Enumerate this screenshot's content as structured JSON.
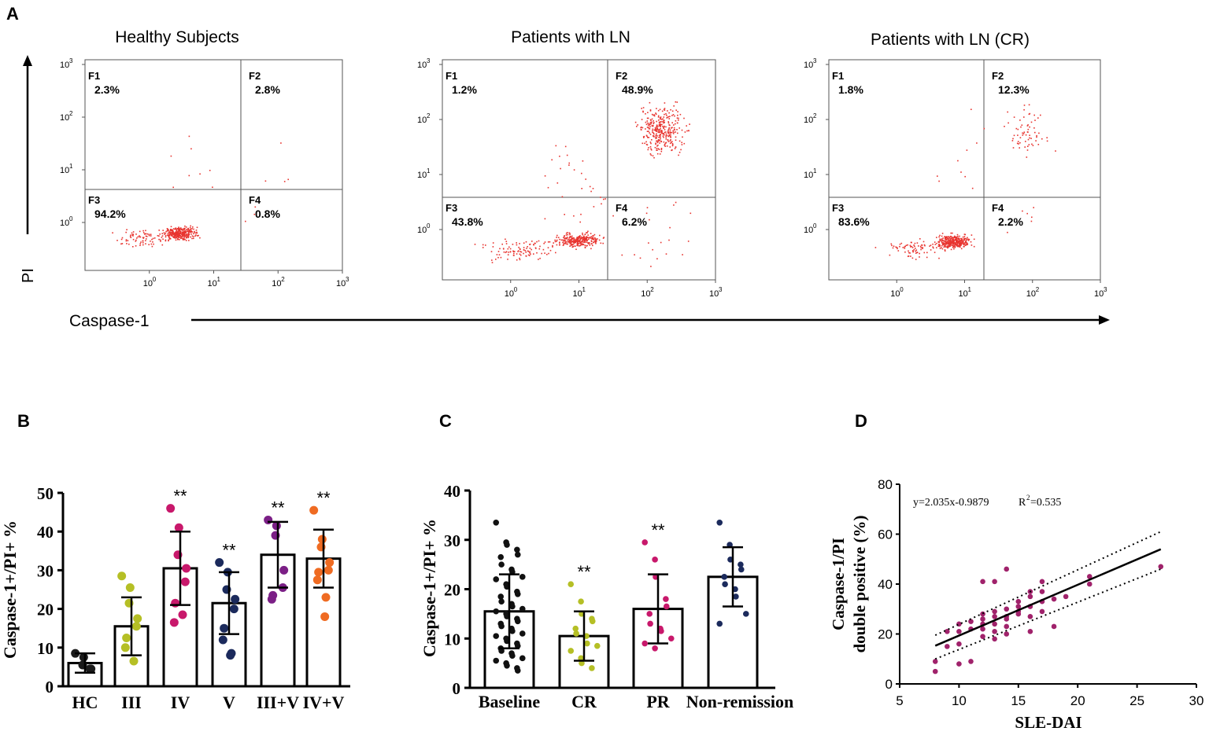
{
  "panel_labels": {
    "a": "A",
    "b": "B",
    "c": "C",
    "d": "D"
  },
  "panel_a": {
    "y_axis_label": "PI",
    "x_axis_label": "Caspase-1",
    "tick_labels": [
      "10",
      "0",
      "1",
      "2",
      "3"
    ],
    "plots": [
      {
        "title": "Healthy Subjects",
        "quadrants": [
          {
            "name": "F1",
            "value": "2.3%"
          },
          {
            "name": "F2",
            "value": "2.8%"
          },
          {
            "name": "F3",
            "value": "94.2%"
          },
          {
            "name": "F4",
            "value": "0.8%"
          }
        ]
      },
      {
        "title": "Patients with LN",
        "quadrants": [
          {
            "name": "F1",
            "value": "1.2%"
          },
          {
            "name": "F2",
            "value": "48.9%"
          },
          {
            "name": "F3",
            "value": "43.8%"
          },
          {
            "name": "F4",
            "value": "6.2%"
          }
        ]
      },
      {
        "title": "Patients with LN (CR)",
        "quadrants": [
          {
            "name": "F1",
            "value": "1.8%"
          },
          {
            "name": "F2",
            "value": "12.3%"
          },
          {
            "name": "F3",
            "value": "83.6%"
          },
          {
            "name": "F4",
            "value": "2.2%"
          }
        ]
      }
    ]
  },
  "chart_data": [
    {
      "panel": "A",
      "type": "scatter",
      "description_text": "flow cytometry dot plots, log scale 10^-1 to 10^3",
      "xlabel": "Caspase-1",
      "ylabel": "PI",
      "xlim": [
        0.1,
        1000
      ],
      "ylim": [
        0.1,
        1000
      ],
      "series": [
        {
          "name": "Healthy Subjects",
          "quadrant_percent": {
            "F1": 2.3,
            "F2": 2.8,
            "F3": 94.2,
            "F4": 0.8
          }
        },
        {
          "name": "Patients with LN",
          "quadrant_percent": {
            "F1": 1.2,
            "F2": 48.9,
            "F3": 43.8,
            "F4": 6.2
          }
        },
        {
          "name": "Patients with LN (CR)",
          "quadrant_percent": {
            "F1": 1.8,
            "F2": 12.3,
            "F3": 83.6,
            "F4": 2.2
          }
        }
      ]
    },
    {
      "panel": "B",
      "type": "bar",
      "ylabel": "Caspase-1+/PI+ %",
      "ylim": [
        0,
        50
      ],
      "yticks": [
        "0",
        "10",
        "20",
        "30",
        "40",
        "50"
      ],
      "categories": [
        "HC",
        "III",
        "IV",
        "V",
        "III+V",
        "IV+V"
      ],
      "means": [
        6,
        15.5,
        30.5,
        21.5,
        34,
        33
      ],
      "sd": [
        2.5,
        7.5,
        9.5,
        8,
        8.5,
        7.5
      ],
      "significance": [
        "",
        "",
        "**",
        "**",
        "**",
        "**"
      ],
      "colors": [
        "#1a1a1a",
        "#b5bf25",
        "#c8186b",
        "#1b2a5c",
        "#7b1f86",
        "#ef6b22"
      ],
      "points": [
        [
          8.5,
          7.5,
          5.5,
          4.5,
          4.5
        ],
        [
          28.5,
          25.5,
          21.5,
          17.5,
          15.5,
          12.5,
          10,
          6.5
        ],
        [
          46,
          41,
          34,
          30.5,
          27,
          21.5,
          16.5,
          18.5
        ],
        [
          32,
          29.5,
          25,
          22.5,
          20,
          15,
          12,
          8.5,
          8
        ],
        [
          43,
          41.5,
          39,
          30,
          25.5,
          23.5,
          22.5
        ],
        [
          45.5,
          38,
          36,
          32,
          30,
          29.5,
          27.5,
          23,
          18
        ]
      ]
    },
    {
      "panel": "C",
      "type": "bar",
      "ylabel": "Caspase-1+/PI+ %",
      "ylim": [
        0,
        40
      ],
      "yticks": [
        "0",
        "10",
        "20",
        "30",
        "40"
      ],
      "categories": [
        "Baseline",
        "CR",
        "PR",
        "Non-remission"
      ],
      "means": [
        15.5,
        10.5,
        16,
        22.5
      ],
      "sd": [
        7.5,
        5,
        7,
        6
      ],
      "significance": [
        "",
        "**",
        "**",
        ""
      ],
      "colors": [
        "#111111",
        "#b5bf25",
        "#c8186b",
        "#1b2a5c"
      ],
      "points": [
        [
          33.5,
          29.5,
          29,
          28,
          27,
          26.5,
          25,
          24,
          23.5,
          22.5,
          22,
          21,
          20.5,
          19.5,
          19,
          18.5,
          17.5,
          17,
          16.5,
          16,
          15.5,
          15,
          14.5,
          14,
          13.5,
          13,
          12.5,
          12,
          11.5,
          11,
          10.5,
          10,
          9.5,
          9,
          8.5,
          8,
          7.5,
          7,
          6.5,
          6,
          5.5,
          5,
          4.5,
          4,
          3.5
        ],
        [
          21,
          17.5,
          15,
          14,
          13.5,
          12,
          11,
          10.5,
          9,
          8.5,
          7.5,
          6,
          5,
          4
        ],
        [
          29.5,
          26,
          22.5,
          18,
          16.5,
          15,
          13,
          12,
          11.5,
          10,
          9,
          8
        ],
        [
          33.5,
          29,
          26,
          25,
          24,
          22.5,
          21,
          20,
          18.5,
          15,
          13
        ]
      ]
    },
    {
      "panel": "D",
      "type": "scatter",
      "xlabel": "SLE-DAI",
      "ylabel": "Caspase-1/PI double positive (%)",
      "ylabel_lines": [
        "Caspase-1/PI",
        "double positive (%)"
      ],
      "xlim": [
        5,
        30
      ],
      "ylim": [
        0,
        80
      ],
      "xticks": [
        "5",
        "10",
        "15",
        "20",
        "25",
        "30"
      ],
      "yticks": [
        "0",
        "20",
        "40",
        "60",
        "80"
      ],
      "equation": "y=2.035x-0.9879",
      "r2_label": "R",
      "r2_sup": "2",
      "r2_value": "=0.535",
      "fit": {
        "slope": 2.035,
        "intercept": -0.9879,
        "x_range": [
          8,
          27
        ]
      },
      "ci_upper": [
        [
          8,
          19.5
        ],
        [
          27,
          61
        ]
      ],
      "ci_lower": [
        [
          8,
          10
        ],
        [
          27,
          46
        ]
      ],
      "points": [
        [
          8,
          5
        ],
        [
          8,
          9
        ],
        [
          9,
          21
        ],
        [
          9,
          15
        ],
        [
          10,
          24
        ],
        [
          10,
          21
        ],
        [
          10,
          16
        ],
        [
          10,
          8
        ],
        [
          11,
          22
        ],
        [
          11,
          9
        ],
        [
          12,
          41
        ],
        [
          12,
          28
        ],
        [
          12,
          26
        ],
        [
          12,
          22
        ],
        [
          12,
          19
        ],
        [
          13,
          41
        ],
        [
          13,
          29
        ],
        [
          13,
          27
        ],
        [
          13,
          24
        ],
        [
          13,
          18
        ],
        [
          13,
          21
        ],
        [
          14,
          46
        ],
        [
          14,
          30
        ],
        [
          14,
          26
        ],
        [
          14,
          23
        ],
        [
          14,
          20
        ],
        [
          15,
          33
        ],
        [
          15,
          29
        ],
        [
          15,
          28
        ],
        [
          16,
          35
        ],
        [
          16,
          31
        ],
        [
          16,
          21
        ],
        [
          16,
          27
        ],
        [
          17,
          41
        ],
        [
          17,
          37
        ],
        [
          17,
          33
        ],
        [
          18,
          34
        ],
        [
          18,
          23
        ],
        [
          19,
          35
        ],
        [
          21,
          40
        ],
        [
          21,
          43
        ],
        [
          27,
          47
        ],
        [
          15,
          31
        ],
        [
          16,
          37
        ],
        [
          12,
          24
        ],
        [
          11,
          25
        ],
        [
          17,
          29
        ],
        [
          14,
          27
        ]
      ]
    }
  ]
}
